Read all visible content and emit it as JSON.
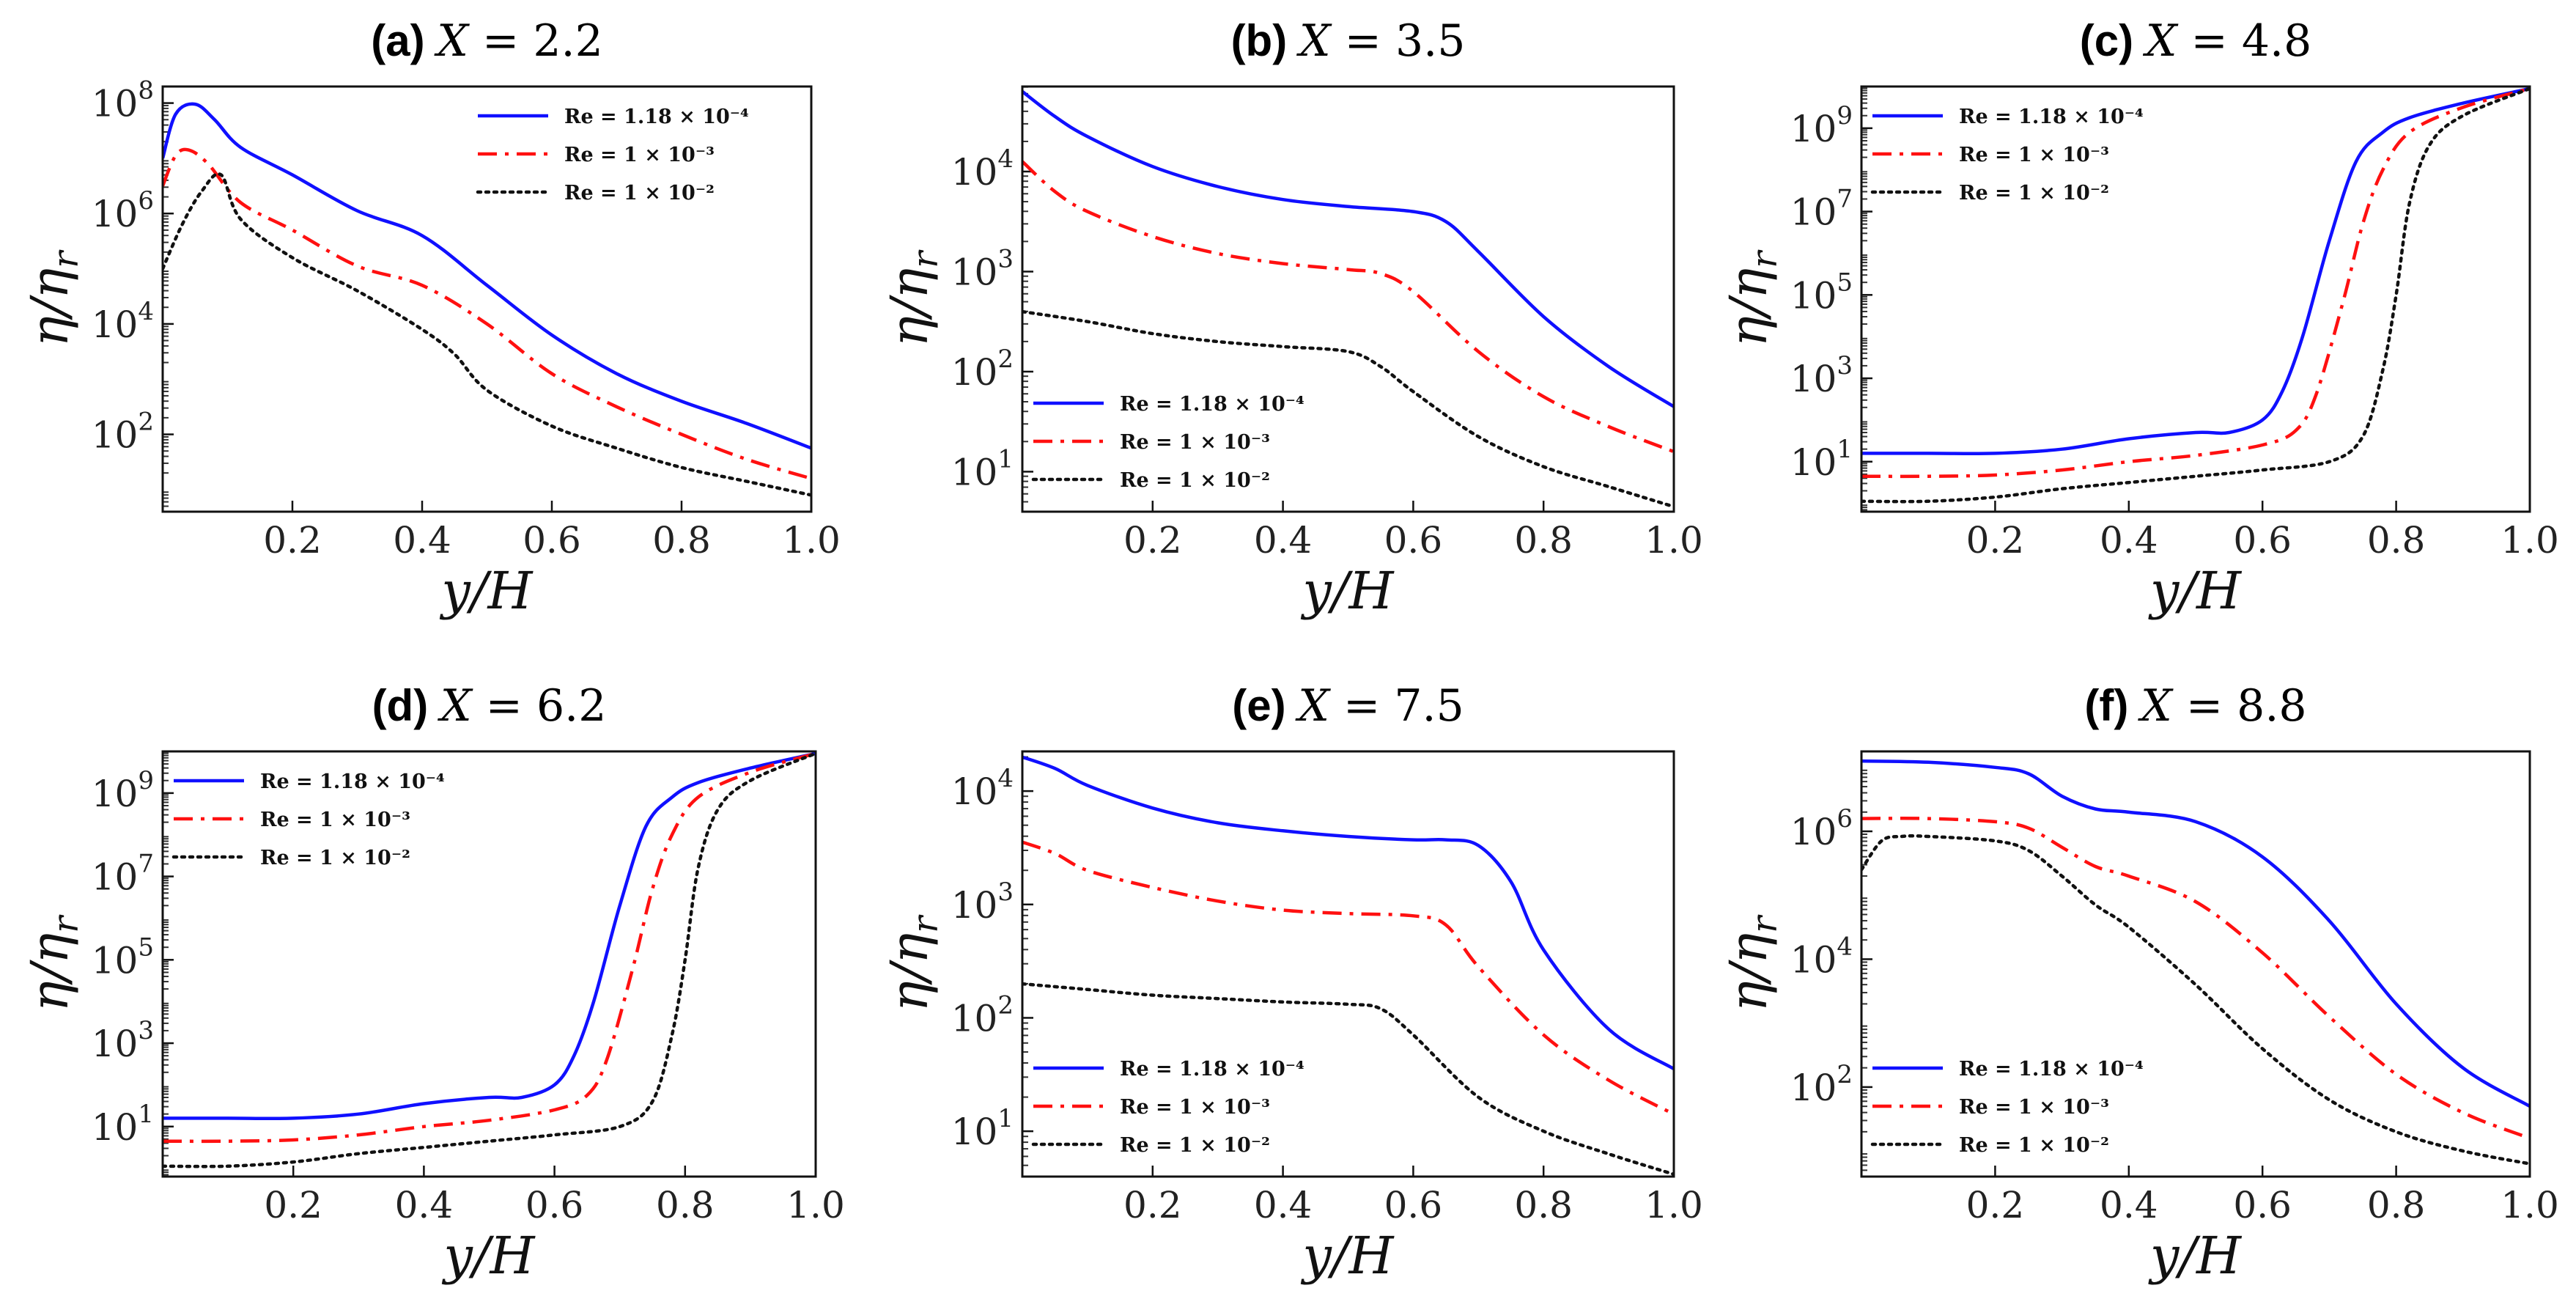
{
  "chart_data": [
    {
      "id": "a",
      "title": {
        "label": "(a)",
        "var": "X",
        "eq": " = 2.2"
      },
      "type": "line",
      "xlabel": "y/H",
      "ylabel": "η/η_r",
      "yscale": "log",
      "xlim": [
        0.0,
        1.0
      ],
      "ylim_log10": [
        0.6,
        8.3
      ],
      "xticks": [
        0.2,
        0.4,
        0.6,
        0.8,
        1.0
      ],
      "xtick_labels": [
        "0.2",
        "0.4",
        "0.6",
        "0.8",
        "1.0"
      ],
      "yticks": [
        {
          "base": "10",
          "exp": "2",
          "log": 2
        },
        {
          "base": "10",
          "exp": "4",
          "log": 4
        },
        {
          "base": "10",
          "exp": "6",
          "log": 6
        },
        {
          "base": "10",
          "exp": "8",
          "log": 8
        }
      ],
      "legend_position": "top-right",
      "series": [
        {
          "name": "Re = 1.18 × 10⁻⁴",
          "color": "#1010ff",
          "dash": "solid",
          "x": [
            0.0,
            0.02,
            0.05,
            0.08,
            0.12,
            0.2,
            0.3,
            0.4,
            0.5,
            0.6,
            0.7,
            0.8,
            0.9,
            1.0
          ],
          "log10_y": [
            7.0,
            7.8,
            7.98,
            7.7,
            7.2,
            6.7,
            6.05,
            5.6,
            4.7,
            3.8,
            3.1,
            2.6,
            2.2,
            1.75
          ]
        },
        {
          "name": "Re = 1 × 10⁻³",
          "color": "#ff1010",
          "dash": "dashdot",
          "x": [
            0.0,
            0.02,
            0.04,
            0.07,
            0.12,
            0.2,
            0.3,
            0.4,
            0.5,
            0.6,
            0.7,
            0.8,
            0.9,
            1.0
          ],
          "log10_y": [
            6.5,
            7.05,
            7.15,
            6.9,
            6.2,
            5.7,
            5.05,
            4.7,
            4.0,
            3.1,
            2.5,
            2.0,
            1.55,
            1.2
          ]
        },
        {
          "name": "Re = 1 × 10⁻²",
          "color": "#111111",
          "dash": "dotted",
          "x": [
            0.0,
            0.03,
            0.06,
            0.09,
            0.12,
            0.2,
            0.3,
            0.4,
            0.45,
            0.5,
            0.6,
            0.7,
            0.8,
            0.9,
            1.0
          ],
          "log10_y": [
            5.0,
            5.8,
            6.4,
            6.7,
            5.9,
            5.2,
            4.6,
            3.9,
            3.45,
            2.8,
            2.15,
            1.75,
            1.4,
            1.15,
            0.9
          ]
        }
      ]
    },
    {
      "id": "b",
      "title": {
        "label": "(b)",
        "var": "X",
        "eq": " = 3.5"
      },
      "type": "line",
      "xlabel": "y/H",
      "ylabel": "η/η_r",
      "yscale": "log",
      "xlim": [
        0.0,
        1.0
      ],
      "ylim_log10": [
        0.6,
        4.85
      ],
      "xticks": [
        0.2,
        0.4,
        0.6,
        0.8,
        1.0
      ],
      "xtick_labels": [
        "0.2",
        "0.4",
        "0.6",
        "0.8",
        "1.0"
      ],
      "yticks": [
        {
          "base": "10",
          "exp": "1",
          "log": 1
        },
        {
          "base": "10",
          "exp": "2",
          "log": 2
        },
        {
          "base": "10",
          "exp": "3",
          "log": 3
        },
        {
          "base": "10",
          "exp": "4",
          "log": 4
        }
      ],
      "legend_position": "lower-left",
      "series": [
        {
          "name": "Re = 1.18 × 10⁻⁴",
          "color": "#1010ff",
          "dash": "solid",
          "x": [
            0.0,
            0.05,
            0.1,
            0.2,
            0.3,
            0.4,
            0.5,
            0.6,
            0.65,
            0.7,
            0.8,
            0.9,
            1.0
          ],
          "log10_y": [
            4.8,
            4.55,
            4.35,
            4.05,
            3.85,
            3.72,
            3.65,
            3.6,
            3.5,
            3.2,
            2.55,
            2.05,
            1.65
          ]
        },
        {
          "name": "Re = 1 × 10⁻³",
          "color": "#ff1010",
          "dash": "dashdot",
          "x": [
            0.0,
            0.05,
            0.1,
            0.2,
            0.3,
            0.4,
            0.5,
            0.55,
            0.6,
            0.7,
            0.8,
            0.9,
            1.0
          ],
          "log10_y": [
            4.1,
            3.8,
            3.6,
            3.35,
            3.18,
            3.08,
            3.02,
            2.98,
            2.8,
            2.2,
            1.75,
            1.45,
            1.2
          ]
        },
        {
          "name": "Re = 1 × 10⁻²",
          "color": "#111111",
          "dash": "dotted",
          "x": [
            0.0,
            0.1,
            0.2,
            0.3,
            0.4,
            0.5,
            0.55,
            0.6,
            0.7,
            0.8,
            0.9,
            1.0
          ],
          "log10_y": [
            2.6,
            2.5,
            2.38,
            2.3,
            2.25,
            2.2,
            2.05,
            1.8,
            1.35,
            1.05,
            0.85,
            0.65
          ]
        }
      ]
    },
    {
      "id": "c",
      "title": {
        "label": "(c)",
        "var": "X",
        "eq": " = 4.8"
      },
      "type": "line",
      "xlabel": "y/H",
      "ylabel": "η/η_r",
      "yscale": "log",
      "xlim": [
        0.0,
        1.0
      ],
      "ylim_log10": [
        -0.2,
        10.0
      ],
      "xticks": [
        0.2,
        0.4,
        0.6,
        0.8,
        1.0
      ],
      "xtick_labels": [
        "0.2",
        "0.4",
        "0.6",
        "0.8",
        "1.0"
      ],
      "yticks": [
        {
          "base": "10",
          "exp": "1",
          "log": 1
        },
        {
          "base": "10",
          "exp": "3",
          "log": 3
        },
        {
          "base": "10",
          "exp": "5",
          "log": 5
        },
        {
          "base": "10",
          "exp": "7",
          "log": 7
        },
        {
          "base": "10",
          "exp": "9",
          "log": 9
        }
      ],
      "legend_position": "top-left",
      "series": [
        {
          "name": "Re = 1.18 × 10⁻⁴",
          "color": "#1010ff",
          "dash": "solid",
          "x": [
            0.0,
            0.1,
            0.2,
            0.3,
            0.4,
            0.5,
            0.55,
            0.6,
            0.63,
            0.66,
            0.7,
            0.74,
            0.78,
            0.82,
            0.9,
            1.0
          ],
          "log10_y": [
            1.2,
            1.2,
            1.2,
            1.3,
            1.55,
            1.7,
            1.7,
            2.0,
            2.7,
            4.0,
            6.3,
            8.2,
            8.9,
            9.25,
            9.6,
            9.95
          ]
        },
        {
          "name": "Re = 1 × 10⁻³",
          "color": "#ff1010",
          "dash": "dashdot",
          "x": [
            0.0,
            0.1,
            0.2,
            0.3,
            0.4,
            0.5,
            0.6,
            0.65,
            0.68,
            0.72,
            0.75,
            0.78,
            0.82,
            0.9,
            1.0
          ],
          "log10_y": [
            0.65,
            0.65,
            0.68,
            0.8,
            1.0,
            1.15,
            1.4,
            1.75,
            2.6,
            4.8,
            6.7,
            8.0,
            8.9,
            9.5,
            9.95
          ]
        },
        {
          "name": "Re = 1 × 10⁻²",
          "color": "#111111",
          "dash": "dotted",
          "x": [
            0.0,
            0.1,
            0.2,
            0.3,
            0.4,
            0.5,
            0.6,
            0.7,
            0.75,
            0.78,
            0.8,
            0.82,
            0.85,
            0.9,
            1.0
          ],
          "log10_y": [
            0.05,
            0.05,
            0.15,
            0.35,
            0.5,
            0.65,
            0.8,
            1.0,
            1.6,
            3.2,
            5.0,
            7.2,
            8.6,
            9.3,
            9.95
          ]
        }
      ]
    },
    {
      "id": "d",
      "title": {
        "label": "(d)",
        "var": "X",
        "eq": " = 6.2"
      },
      "type": "line",
      "xlabel": "y/H",
      "ylabel": "η/η_r",
      "yscale": "log",
      "xlim": [
        0.0,
        1.0
      ],
      "ylim_log10": [
        -0.2,
        10.0
      ],
      "xticks": [
        0.2,
        0.4,
        0.6,
        0.8,
        1.0
      ],
      "xtick_labels": [
        "0.2",
        "0.4",
        "0.6",
        "0.8",
        "1.0"
      ],
      "yticks": [
        {
          "base": "10",
          "exp": "1",
          "log": 1
        },
        {
          "base": "10",
          "exp": "3",
          "log": 3
        },
        {
          "base": "10",
          "exp": "5",
          "log": 5
        },
        {
          "base": "10",
          "exp": "7",
          "log": 7
        },
        {
          "base": "10",
          "exp": "9",
          "log": 9
        }
      ],
      "legend_position": "top-left",
      "series": [
        {
          "name": "Re = 1.18 × 10⁻⁴",
          "color": "#1010ff",
          "dash": "solid",
          "x": [
            0.0,
            0.1,
            0.2,
            0.3,
            0.4,
            0.5,
            0.55,
            0.6,
            0.63,
            0.66,
            0.7,
            0.74,
            0.78,
            0.82,
            0.9,
            1.0
          ],
          "log10_y": [
            1.2,
            1.2,
            1.2,
            1.3,
            1.55,
            1.7,
            1.7,
            2.0,
            2.7,
            4.0,
            6.3,
            8.2,
            8.9,
            9.25,
            9.6,
            9.95
          ]
        },
        {
          "name": "Re = 1 × 10⁻³",
          "color": "#ff1010",
          "dash": "dashdot",
          "x": [
            0.0,
            0.1,
            0.2,
            0.3,
            0.4,
            0.5,
            0.6,
            0.65,
            0.68,
            0.72,
            0.75,
            0.78,
            0.82,
            0.9,
            1.0
          ],
          "log10_y": [
            0.65,
            0.65,
            0.68,
            0.8,
            1.0,
            1.15,
            1.4,
            1.75,
            2.6,
            4.8,
            6.7,
            8.0,
            8.9,
            9.5,
            9.95
          ]
        },
        {
          "name": "Re = 1 × 10⁻²",
          "color": "#111111",
          "dash": "dotted",
          "x": [
            0.0,
            0.1,
            0.2,
            0.3,
            0.4,
            0.5,
            0.6,
            0.7,
            0.75,
            0.78,
            0.8,
            0.82,
            0.85,
            0.9,
            1.0
          ],
          "log10_y": [
            0.05,
            0.05,
            0.15,
            0.35,
            0.5,
            0.65,
            0.8,
            1.0,
            1.6,
            3.2,
            5.0,
            7.2,
            8.6,
            9.3,
            9.95
          ]
        }
      ]
    },
    {
      "id": "e",
      "title": {
        "label": "(e)",
        "var": "X",
        "eq": " = 7.5"
      },
      "type": "line",
      "xlabel": "y/H",
      "ylabel": "η/η_r",
      "yscale": "log",
      "xlim": [
        0.0,
        1.0
      ],
      "ylim_log10": [
        0.6,
        4.35
      ],
      "xticks": [
        0.2,
        0.4,
        0.6,
        0.8,
        1.0
      ],
      "xtick_labels": [
        "0.2",
        "0.4",
        "0.6",
        "0.8",
        "1.0"
      ],
      "yticks": [
        {
          "base": "10",
          "exp": "1",
          "log": 1
        },
        {
          "base": "10",
          "exp": "2",
          "log": 2
        },
        {
          "base": "10",
          "exp": "3",
          "log": 3
        },
        {
          "base": "10",
          "exp": "4",
          "log": 4
        }
      ],
      "legend_position": "lower-left",
      "series": [
        {
          "name": "Re = 1.18 × 10⁻⁴",
          "color": "#1010ff",
          "dash": "solid",
          "x": [
            0.0,
            0.05,
            0.1,
            0.2,
            0.3,
            0.4,
            0.5,
            0.6,
            0.65,
            0.7,
            0.75,
            0.8,
            0.9,
            1.0
          ],
          "log10_y": [
            4.3,
            4.2,
            4.05,
            3.85,
            3.72,
            3.65,
            3.6,
            3.57,
            3.57,
            3.52,
            3.2,
            2.6,
            1.9,
            1.55
          ]
        },
        {
          "name": "Re = 1 × 10⁻³",
          "color": "#ff1010",
          "dash": "dashdot",
          "x": [
            0.0,
            0.05,
            0.1,
            0.2,
            0.3,
            0.4,
            0.5,
            0.6,
            0.65,
            0.7,
            0.8,
            0.9,
            1.0
          ],
          "log10_y": [
            3.55,
            3.45,
            3.3,
            3.15,
            3.03,
            2.95,
            2.92,
            2.9,
            2.82,
            2.45,
            1.85,
            1.45,
            1.15
          ]
        },
        {
          "name": "Re = 1 × 10⁻²",
          "color": "#111111",
          "dash": "dotted",
          "x": [
            0.0,
            0.1,
            0.2,
            0.3,
            0.4,
            0.5,
            0.55,
            0.6,
            0.7,
            0.8,
            0.9,
            1.0
          ],
          "log10_y": [
            2.3,
            2.25,
            2.2,
            2.17,
            2.14,
            2.12,
            2.08,
            1.85,
            1.3,
            1.0,
            0.8,
            0.62
          ]
        }
      ]
    },
    {
      "id": "f",
      "title": {
        "label": "(f)",
        "var": "X",
        "eq": " = 8.8"
      },
      "type": "line",
      "xlabel": "y/H",
      "ylabel": "η/η_r",
      "yscale": "log",
      "xlim": [
        0.0,
        1.0
      ],
      "ylim_log10": [
        0.6,
        7.25
      ],
      "xticks": [
        0.2,
        0.4,
        0.6,
        0.8,
        1.0
      ],
      "xtick_labels": [
        "0.2",
        "0.4",
        "0.6",
        "0.8",
        "1.0"
      ],
      "yticks": [
        {
          "base": "10",
          "exp": "2",
          "log": 2
        },
        {
          "base": "10",
          "exp": "4",
          "log": 4
        },
        {
          "base": "10",
          "exp": "6",
          "log": 6
        }
      ],
      "legend_position": "lower-left",
      "series": [
        {
          "name": "Re = 1.18 × 10⁻⁴",
          "color": "#1010ff",
          "dash": "solid",
          "x": [
            0.0,
            0.1,
            0.2,
            0.25,
            0.3,
            0.35,
            0.4,
            0.5,
            0.6,
            0.7,
            0.8,
            0.9,
            1.0
          ],
          "log10_y": [
            7.1,
            7.08,
            7.0,
            6.9,
            6.55,
            6.35,
            6.3,
            6.15,
            5.6,
            4.6,
            3.3,
            2.3,
            1.7
          ]
        },
        {
          "name": "Re = 1 × 10⁻³",
          "color": "#ff1010",
          "dash": "dashdot",
          "x": [
            0.0,
            0.1,
            0.2,
            0.25,
            0.3,
            0.35,
            0.4,
            0.5,
            0.6,
            0.7,
            0.8,
            0.9,
            1.0
          ],
          "log10_y": [
            6.2,
            6.2,
            6.15,
            6.05,
            5.75,
            5.45,
            5.3,
            4.9,
            4.1,
            3.1,
            2.2,
            1.6,
            1.2
          ]
        },
        {
          "name": "Re = 1 × 10⁻²",
          "color": "#111111",
          "dash": "dotted",
          "x": [
            0.0,
            0.03,
            0.06,
            0.1,
            0.2,
            0.25,
            0.3,
            0.35,
            0.4,
            0.5,
            0.6,
            0.7,
            0.8,
            0.9,
            1.0
          ],
          "log10_y": [
            5.4,
            5.85,
            5.92,
            5.92,
            5.85,
            5.7,
            5.3,
            4.85,
            4.5,
            3.6,
            2.6,
            1.8,
            1.3,
            1.0,
            0.8
          ]
        }
      ]
    }
  ]
}
